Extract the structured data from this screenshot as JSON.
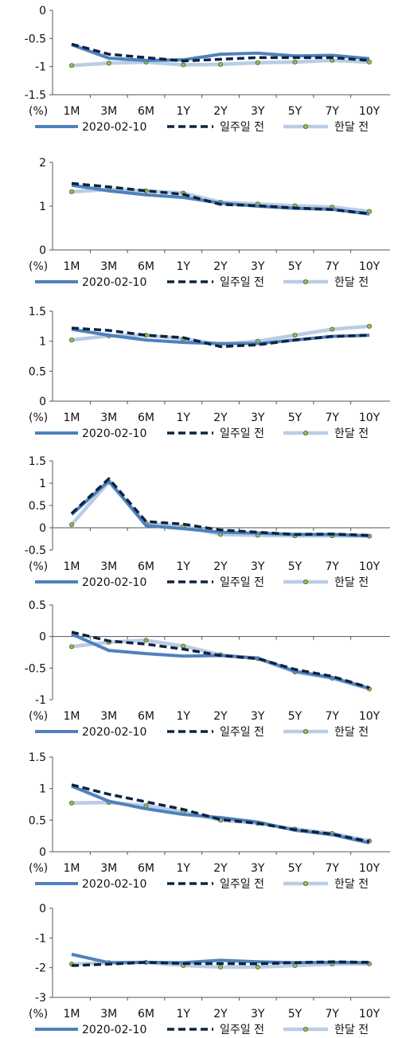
{
  "common": {
    "x_unit_label": "(%)",
    "legend_labels": [
      "2020-02-10",
      "일주일 전",
      "한달 전"
    ]
  },
  "colors": {
    "current": "#4f81bd",
    "week_ago": "#0d2340",
    "month_ago": "#b9cde5",
    "marker_fill": "#9bbb59",
    "axis": "#555555",
    "text": "#111111"
  },
  "chart_data": [
    {
      "type": "line",
      "categories": [
        "1M",
        "3M",
        "6M",
        "1Y",
        "2Y",
        "3Y",
        "5Y",
        "7Y",
        "10Y"
      ],
      "ylim": [
        -1.5,
        0
      ],
      "yticks": [
        0,
        -0.5,
        -1,
        -1.5
      ],
      "ytick_labels": [
        "0",
        "-0.5",
        "-1",
        "-1.5"
      ],
      "legend": "bottom",
      "grid": false,
      "series": [
        {
          "name": "2020-02-10",
          "style": "solid",
          "values": [
            -0.61,
            -0.85,
            -0.89,
            -0.88,
            -0.78,
            -0.76,
            -0.81,
            -0.8,
            -0.86
          ]
        },
        {
          "name": "일주일 전",
          "style": "dashed",
          "values": [
            -0.6,
            -0.78,
            -0.84,
            -0.9,
            -0.87,
            -0.84,
            -0.84,
            -0.84,
            -0.89
          ]
        },
        {
          "name": "한달 전",
          "style": "marker",
          "values": [
            -0.98,
            -0.94,
            -0.92,
            -0.97,
            -0.96,
            -0.93,
            -0.92,
            -0.89,
            -0.92
          ]
        }
      ]
    },
    {
      "type": "line",
      "categories": [
        "1M",
        "3M",
        "6M",
        "1Y",
        "2Y",
        "3Y",
        "5Y",
        "7Y",
        "10Y"
      ],
      "ylim": [
        0,
        2
      ],
      "yticks": [
        2,
        1,
        0
      ],
      "ytick_labels": [
        "2",
        "1",
        "0"
      ],
      "legend": "bottom",
      "grid": false,
      "series": [
        {
          "name": "2020-02-10",
          "style": "solid",
          "values": [
            1.48,
            1.35,
            1.26,
            1.2,
            1.07,
            1.0,
            0.95,
            0.93,
            0.82
          ]
        },
        {
          "name": "일주일 전",
          "style": "dashed",
          "values": [
            1.52,
            1.44,
            1.35,
            1.27,
            1.04,
            1.01,
            0.96,
            0.92,
            0.83
          ]
        },
        {
          "name": "한달 전",
          "style": "marker",
          "values": [
            1.33,
            1.38,
            1.35,
            1.3,
            1.09,
            1.05,
            1.01,
            0.98,
            0.88
          ]
        }
      ]
    },
    {
      "type": "line",
      "categories": [
        "1M",
        "3M",
        "6M",
        "1Y",
        "2Y",
        "3Y",
        "5Y",
        "7Y",
        "10Y"
      ],
      "ylim": [
        0,
        1.5
      ],
      "yticks": [
        1.5,
        1,
        0.5,
        0
      ],
      "ytick_labels": [
        "1.5",
        "1",
        "0.5",
        "0"
      ],
      "legend": "bottom",
      "grid": false,
      "series": [
        {
          "name": "2020-02-10",
          "style": "solid",
          "values": [
            1.2,
            1.1,
            1.02,
            0.98,
            0.96,
            0.96,
            1.02,
            1.08,
            1.1
          ]
        },
        {
          "name": "일주일 전",
          "style": "dashed",
          "values": [
            1.22,
            1.18,
            1.1,
            1.06,
            0.91,
            0.94,
            1.02,
            1.08,
            1.1
          ]
        },
        {
          "name": "한달 전",
          "style": "marker",
          "values": [
            1.02,
            1.09,
            1.1,
            1.04,
            0.95,
            1.0,
            1.1,
            1.2,
            1.25
          ]
        }
      ]
    },
    {
      "type": "line",
      "categories": [
        "1M",
        "3M",
        "6M",
        "1Y",
        "2Y",
        "3Y",
        "5Y",
        "7Y",
        "10Y"
      ],
      "ylim": [
        -0.5,
        1.5
      ],
      "yticks": [
        1.5,
        1,
        0.5,
        0,
        -0.5
      ],
      "ytick_labels": [
        "1.5",
        "1",
        "0.5",
        "0",
        "-0.5"
      ],
      "legend": "bottom",
      "grid": false,
      "series": [
        {
          "name": "2020-02-10",
          "style": "solid",
          "values": [
            0.3,
            1.05,
            0.05,
            -0.02,
            -0.1,
            -0.12,
            -0.15,
            -0.15,
            -0.18
          ]
        },
        {
          "name": "일주일 전",
          "style": "dashed",
          "values": [
            0.32,
            1.1,
            0.14,
            0.08,
            -0.05,
            -0.1,
            -0.15,
            -0.14,
            -0.17
          ]
        },
        {
          "name": "한달 전",
          "style": "marker",
          "values": [
            0.07,
            1.03,
            0.1,
            0.03,
            -0.15,
            -0.17,
            -0.18,
            -0.18,
            -0.19
          ]
        }
      ]
    },
    {
      "type": "line",
      "categories": [
        "1M",
        "3M",
        "6M",
        "1Y",
        "2Y",
        "3Y",
        "5Y",
        "7Y",
        "10Y"
      ],
      "ylim": [
        -1,
        0.5
      ],
      "yticks": [
        0.5,
        0,
        -0.5,
        -1
      ],
      "ytick_labels": [
        "0.5",
        "0",
        "-0.5",
        "-1"
      ],
      "legend": "bottom",
      "grid": false,
      "series": [
        {
          "name": "2020-02-10",
          "style": "solid",
          "values": [
            0.04,
            -0.22,
            -0.27,
            -0.31,
            -0.3,
            -0.34,
            -0.55,
            -0.65,
            -0.82
          ]
        },
        {
          "name": "일주일 전",
          "style": "dashed",
          "values": [
            0.07,
            -0.07,
            -0.12,
            -0.2,
            -0.3,
            -0.35,
            -0.52,
            -0.63,
            -0.81
          ]
        },
        {
          "name": "한달 전",
          "style": "marker",
          "values": [
            -0.16,
            -0.09,
            -0.06,
            -0.15,
            -0.29,
            -0.35,
            -0.56,
            -0.66,
            -0.83
          ]
        }
      ]
    },
    {
      "type": "line",
      "categories": [
        "1M",
        "3M",
        "6M",
        "1Y",
        "2Y",
        "3Y",
        "5Y",
        "7Y",
        "10Y"
      ],
      "ylim": [
        0,
        1.5
      ],
      "yticks": [
        1.5,
        1,
        0.5,
        0
      ],
      "ytick_labels": [
        "1.5",
        "1",
        "0.5",
        "0"
      ],
      "legend": "bottom",
      "grid": false,
      "series": [
        {
          "name": "2020-02-10",
          "style": "solid",
          "values": [
            1.04,
            0.8,
            0.68,
            0.59,
            0.54,
            0.47,
            0.34,
            0.27,
            0.14
          ]
        },
        {
          "name": "일주일 전",
          "style": "dashed",
          "values": [
            1.06,
            0.91,
            0.79,
            0.67,
            0.51,
            0.45,
            0.35,
            0.28,
            0.16
          ]
        },
        {
          "name": "한달 전",
          "style": "marker",
          "values": [
            0.77,
            0.78,
            0.73,
            0.63,
            0.5,
            0.45,
            0.36,
            0.29,
            0.17
          ]
        }
      ]
    },
    {
      "type": "line",
      "categories": [
        "1M",
        "3M",
        "6M",
        "1Y",
        "2Y",
        "3Y",
        "5Y",
        "7Y",
        "10Y"
      ],
      "ylim": [
        -3,
        0
      ],
      "yticks": [
        0,
        -1,
        -2,
        -3
      ],
      "ytick_labels": [
        "0",
        "-1",
        "-2",
        "-3"
      ],
      "legend": "bottom",
      "grid": false,
      "series": [
        {
          "name": "2020-02-10",
          "style": "solid",
          "values": [
            -1.55,
            -1.83,
            -1.82,
            -1.83,
            -1.75,
            -1.8,
            -1.83,
            -1.82,
            -1.83
          ]
        },
        {
          "name": "일주일 전",
          "style": "dashed",
          "values": [
            -1.93,
            -1.88,
            -1.82,
            -1.86,
            -1.86,
            -1.87,
            -1.83,
            -1.8,
            -1.82
          ]
        },
        {
          "name": "한달 전",
          "style": "marker",
          "values": [
            -1.88,
            -1.83,
            -1.82,
            -1.93,
            -1.98,
            -1.98,
            -1.93,
            -1.88,
            -1.87
          ]
        }
      ]
    }
  ]
}
